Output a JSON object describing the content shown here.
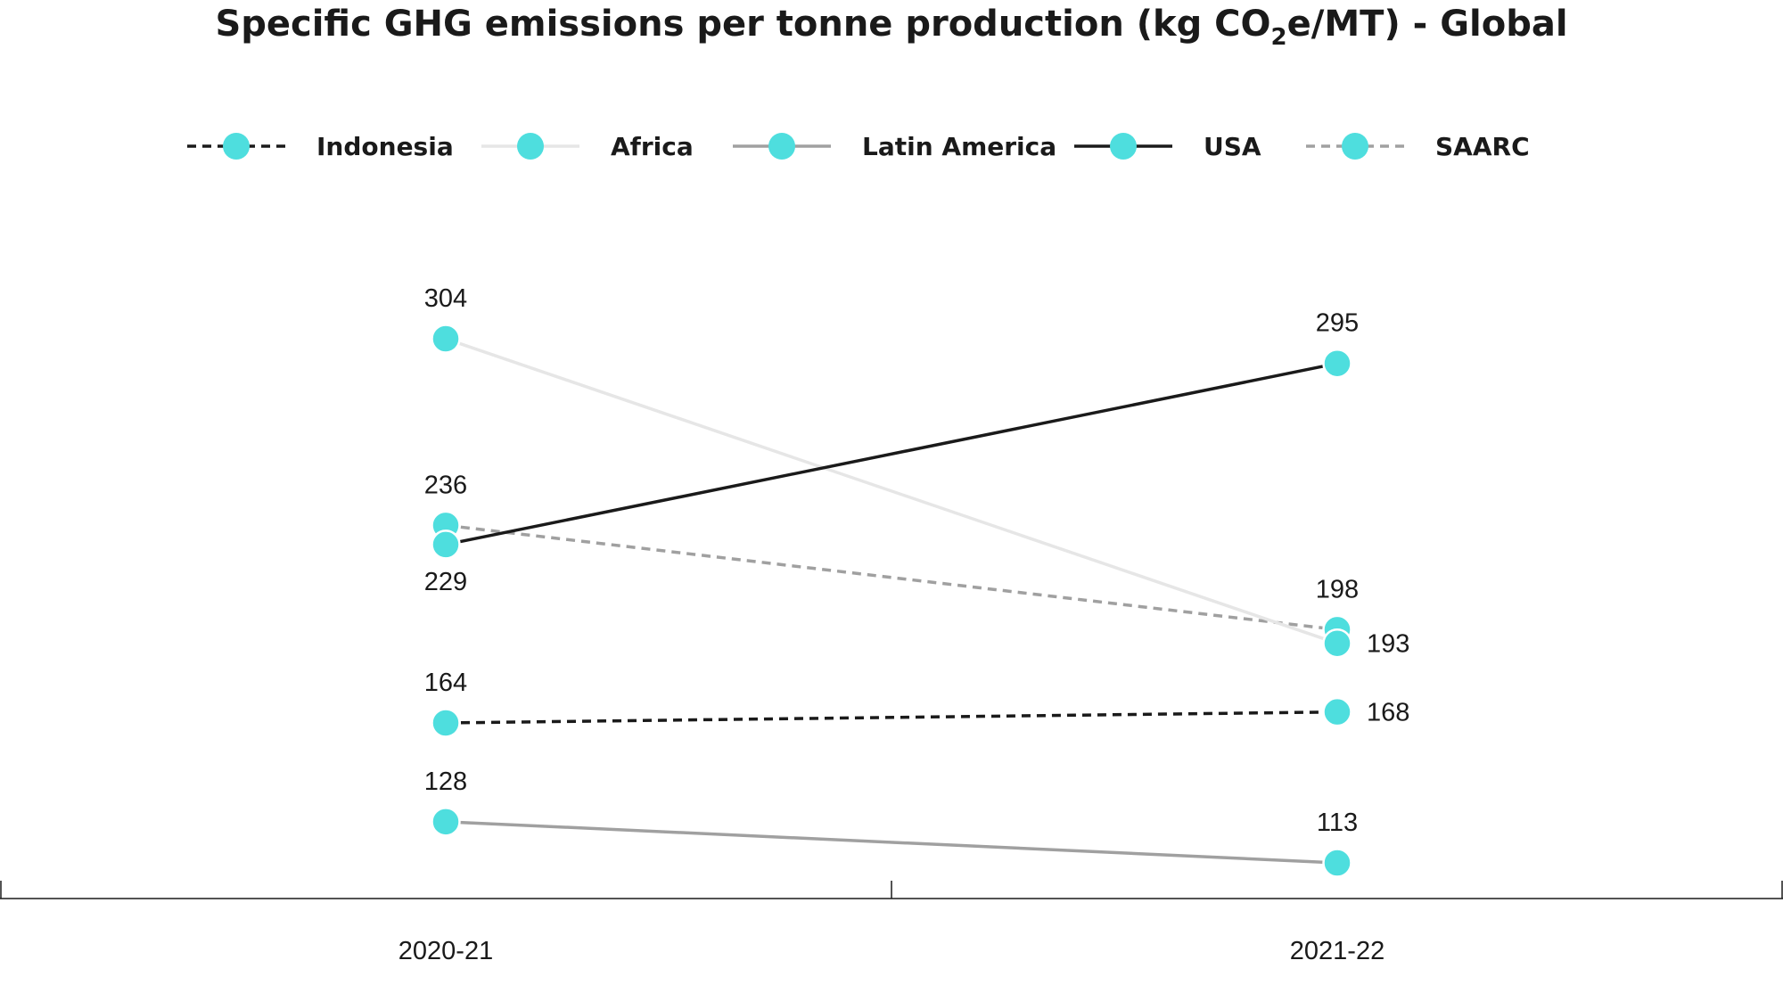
{
  "chart_data": {
    "type": "line",
    "title": "Specific GHG emissions per tonne production (kg CO",
    "title_subscript": "2",
    "title_suffix": "e/MT) - Global",
    "xlabel": "",
    "ylabel": "",
    "categories": [
      "2020-21",
      "2021-22"
    ],
    "ylim": [
      100,
      320
    ],
    "grid": false,
    "legend_position": "top-center",
    "marker_color": "#4EDEDE",
    "series": [
      {
        "name": "Indonesia",
        "values": [
          164,
          168
        ],
        "color": "#1a1a1a",
        "line_style": "dashed"
      },
      {
        "name": "Africa",
        "values": [
          304,
          193
        ],
        "color": "#e6e6e6",
        "line_style": "solid"
      },
      {
        "name": "Latin America",
        "values": [
          128,
          113
        ],
        "color": "#a0a0a0",
        "line_style": "solid"
      },
      {
        "name": "USA",
        "values": [
          229,
          295
        ],
        "color": "#1a1a1a",
        "line_style": "solid"
      },
      {
        "name": "SAARC",
        "values": [
          236,
          198
        ],
        "color": "#a0a0a0",
        "line_style": "dashed"
      }
    ],
    "data_labels": [
      {
        "series": "Indonesia",
        "index": 0,
        "text": "164"
      },
      {
        "series": "Indonesia",
        "index": 1,
        "text": "168"
      },
      {
        "series": "Africa",
        "index": 0,
        "text": "304"
      },
      {
        "series": "Africa",
        "index": 1,
        "text": "193"
      },
      {
        "series": "Latin America",
        "index": 0,
        "text": "128"
      },
      {
        "series": "Latin America",
        "index": 1,
        "text": "113"
      },
      {
        "series": "USA",
        "index": 0,
        "text": "229"
      },
      {
        "series": "USA",
        "index": 1,
        "text": "295"
      },
      {
        "series": "SAARC",
        "index": 0,
        "text": "236"
      },
      {
        "series": "SAARC",
        "index": 1,
        "text": "198"
      }
    ]
  }
}
